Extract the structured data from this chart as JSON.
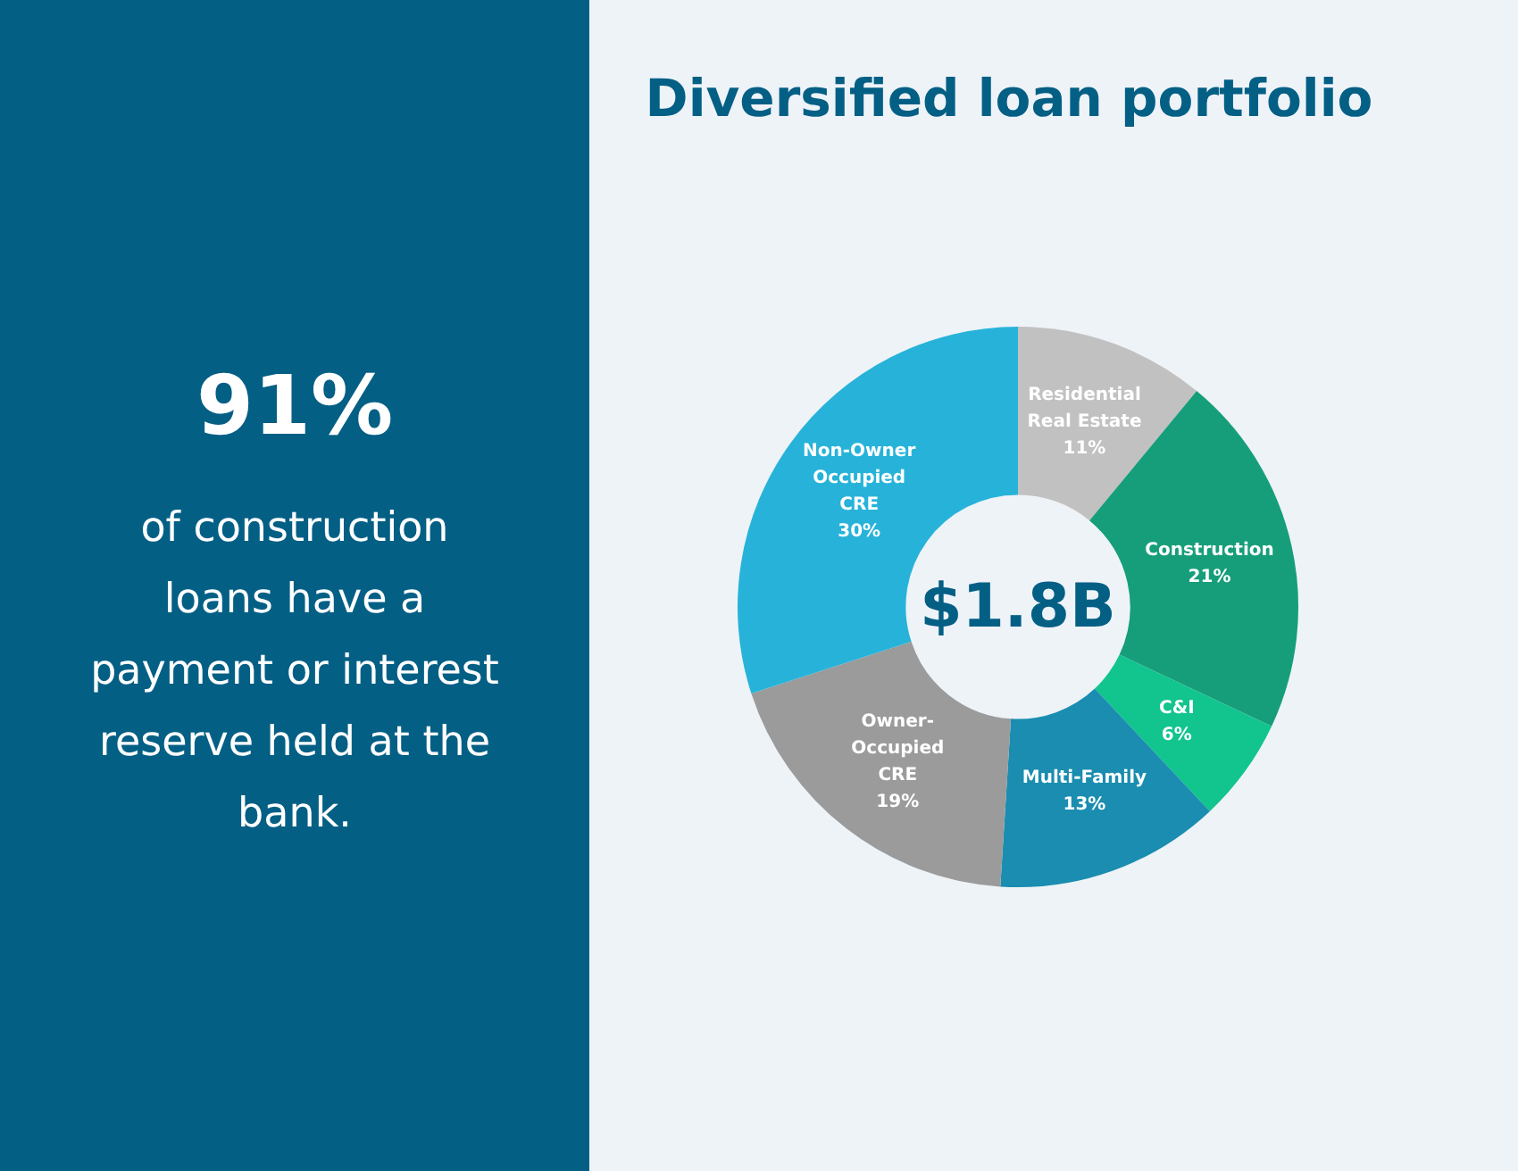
{
  "chart_data": {
    "type": "donut",
    "title": "Diversified loan portfolio",
    "categories": [
      "Residential Real Estate",
      "Construction",
      "C&I",
      "Multi-Family",
      "Owner-Occupied CRE",
      "Non-Owner Occupied CRE"
    ],
    "values": [
      11,
      21,
      6,
      13,
      19,
      30
    ],
    "colors": [
      "#c2c1c1",
      "#169e7a",
      "#12c48e",
      "#1a8db0",
      "#9b9b9b",
      "#27b3d9"
    ],
    "value_labels": [
      "11%",
      "21%",
      "6%",
      "13%",
      "19%",
      "30%"
    ],
    "legend": false,
    "annotations": [
      "91%",
      "of construction loans have a payment or interest reserve held at the bank.",
      "$1.8B"
    ]
  }
}
